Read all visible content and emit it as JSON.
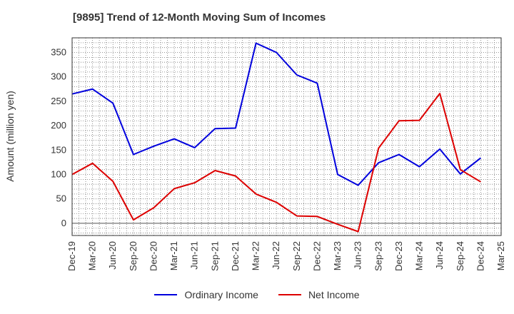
{
  "chart_data": {
    "type": "line",
    "title": "[9895]  Trend of 12-Month Moving Sum of Incomes",
    "xlabel": "",
    "ylabel": "Amount (million yen)",
    "categories": [
      "Dec-19",
      "Mar-20",
      "Jun-20",
      "Sep-20",
      "Dec-20",
      "Mar-21",
      "Jun-21",
      "Sep-21",
      "Dec-21",
      "Mar-22",
      "Jun-22",
      "Sep-22",
      "Dec-22",
      "Mar-23",
      "Jun-23",
      "Sep-23",
      "Dec-23",
      "Mar-24",
      "Jun-24",
      "Sep-24",
      "Dec-24",
      "Mar-25"
    ],
    "yticks": [
      0,
      50,
      100,
      150,
      200,
      250,
      300,
      350
    ],
    "ylim": [
      -25,
      380
    ],
    "grid": true,
    "legend_position": "bottom",
    "series": [
      {
        "name": "Ordinary Income",
        "color": "#0000dd",
        "values": [
          265,
          275,
          246,
          141,
          158,
          173,
          155,
          194,
          195,
          369,
          350,
          304,
          287,
          100,
          78,
          124,
          141,
          116,
          152,
          101,
          134,
          null
        ]
      },
      {
        "name": "Net Income",
        "color": "#dd0000",
        "values": [
          100,
          123,
          86,
          7,
          32,
          71,
          83,
          108,
          97,
          60,
          43,
          15,
          14,
          -2,
          -17,
          154,
          210,
          211,
          266,
          110,
          85,
          null
        ]
      }
    ]
  }
}
